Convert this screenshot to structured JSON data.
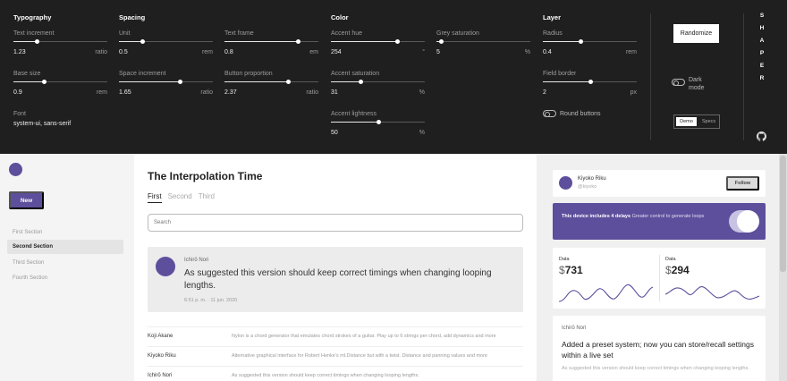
{
  "panel": {
    "columns": {
      "typography": "Typography",
      "spacing": "Spacing",
      "color": "Color",
      "layer": "Layer"
    },
    "controls": {
      "text_increment": {
        "label": "Text increment",
        "value": "1.23",
        "unit": "ratio",
        "level": 0.25
      },
      "base_size": {
        "label": "Base size",
        "value": "0.9",
        "unit": "rem",
        "level": 0.32
      },
      "unit": {
        "label": "Unit",
        "value": "0.5",
        "unit": "rem",
        "level": 0.25
      },
      "text_frame": {
        "label": "Text frame",
        "value": "0.8",
        "unit": "em",
        "level": 0.78
      },
      "space_increment": {
        "label": "Space increment",
        "value": "1.65",
        "unit": "ratio",
        "level": 0.65
      },
      "button_proportion": {
        "label": "Button proportion",
        "value": "2.37",
        "unit": "ratio",
        "level": 0.68
      },
      "accent_hue": {
        "label": "Accent hue",
        "value": "254",
        "unit": "°",
        "level": 0.7
      },
      "grey_saturation": {
        "label": "Grey saturation",
        "value": "5",
        "unit": "%",
        "level": 0.05
      },
      "accent_saturation": {
        "label": "Accent saturation",
        "value": "31",
        "unit": "%",
        "level": 0.31
      },
      "accent_lightness": {
        "label": "Accent lightness",
        "value": "50",
        "unit": "%",
        "level": 0.5
      },
      "radius": {
        "label": "Radius",
        "value": "0.4",
        "unit": "rem",
        "level": 0.4
      },
      "field_border": {
        "label": "Field border",
        "value": "2",
        "unit": "px",
        "level": 0.5
      }
    },
    "font": {
      "label": "Font",
      "value": "system-ui, sans-serif"
    },
    "round_buttons": "Round buttons",
    "dark_mode": "Dark mode",
    "randomize": "Randomize",
    "mode_tabs": [
      "Demo",
      "Specs"
    ],
    "brand_letters": [
      "S",
      "H",
      "A",
      "P",
      "E",
      "R"
    ],
    "github_icon": "github-icon"
  },
  "nav": {
    "new_button": "New",
    "items": [
      "First Section",
      "Second Section",
      "Third Section",
      "Fourth Section"
    ],
    "active_index": 1
  },
  "main": {
    "title": "The Interpolation Time",
    "tabs": [
      "First",
      "Second",
      "Third"
    ],
    "search_placeholder": "Search",
    "feature": {
      "author": "Ichirō Nori",
      "message": "As suggested this version should keep correct timings when changing looping lengths.",
      "time": "6:51 p. m. · 11 jun. 2020"
    },
    "feed": [
      {
        "name": "Koji Akane",
        "text": "Nylon is a chord generator that emulates chord strokes of a guitar. Play up to 6 strings per chord, add dynamics and more"
      },
      {
        "name": "Kiyoko Riku",
        "text": "Alternative graphical interface for Robert Henke's ml.Distance but with a twist. Distance and panning values and more"
      },
      {
        "name": "Ichirō Nori",
        "text": "As suggested this version should keep correct timings when changing looping lengths."
      }
    ]
  },
  "sidebar": {
    "profile": {
      "name": "Kiyoko Riku",
      "handle": "@kiyoko",
      "follow": "Follow"
    },
    "promo": {
      "bold": "This device includes 4 delays",
      "rest": " Greater control to generate loops"
    },
    "stats": [
      {
        "label": "Data",
        "currency": "$",
        "value": "731"
      },
      {
        "label": "Data",
        "currency": "$",
        "value": "294"
      }
    ],
    "post": {
      "author": "Ichirō Nori",
      "title": "Added a preset system; now you can store/recall settings within a live set",
      "subtitle": "As suggested this version should keep correct timings when changing looping lengths."
    }
  },
  "colors": {
    "accent": "#5d4f9c",
    "panel_bg": "#1f1f1f"
  }
}
